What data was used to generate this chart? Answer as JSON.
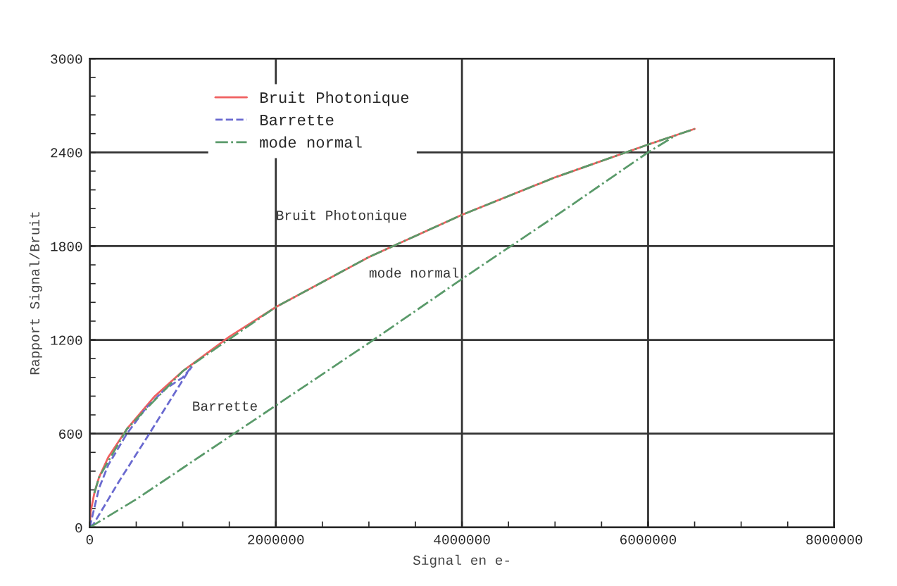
{
  "chart_data": {
    "type": "line",
    "xlabel": "Signal en e-",
    "ylabel": "Rapport Signal/Bruit",
    "xlim": [
      0,
      8000000
    ],
    "xticks": [
      0,
      2000000,
      4000000,
      6000000,
      8000000
    ],
    "ylim": [
      0,
      3000
    ],
    "yticks": [
      0,
      600,
      1200,
      1800,
      2400,
      3000
    ],
    "grid": true,
    "legend": "top left",
    "series": [
      {
        "name": "Bruit Photonique",
        "color": "#f06060",
        "line_style": "solid",
        "x": [
          0,
          10000,
          50000,
          100000,
          200000,
          400000,
          700000,
          1000000,
          1500000,
          2000000,
          3000000,
          4000000,
          5000000,
          6000000,
          6500000
        ],
        "values": [
          0,
          100,
          220,
          320,
          450,
          630,
          840,
          1000,
          1220,
          1410,
          1730,
          2000,
          2240,
          2450,
          2550
        ]
      },
      {
        "name": "Barrette",
        "color": "#6a6ad0",
        "line_style": "dashed",
        "x": [
          0,
          100000,
          200000,
          400000,
          600000,
          800000,
          1000000,
          1100000
        ],
        "values": [
          0,
          250,
          400,
          600,
          760,
          880,
          960,
          1030
        ]
      },
      {
        "color": "#6a6ad0",
        "line_style": "dashed",
        "x": [
          0,
          40000,
          300000,
          630000,
          1050000,
          1100000
        ],
        "values": [
          0,
          20,
          280,
          590,
          990,
          1030
        ]
      },
      {
        "name": "mode normal",
        "color": "#5a9a6a",
        "line_style": "dashdot",
        "x": [
          0,
          500000,
          1000000,
          2000000,
          3000000,
          4000000,
          5000000,
          6000000,
          6300000
        ],
        "values": [
          0,
          180,
          380,
          780,
          1180,
          1590,
          1990,
          2400,
          2510
        ]
      },
      {
        "color": "#5a9a6a",
        "line_style": "dashdot",
        "x": [
          50000,
          100000,
          400000,
          1000000,
          2000000,
          3000000,
          4000000,
          5000000,
          6000000,
          6500000
        ],
        "values": [
          220,
          320,
          630,
          1000,
          1410,
          1730,
          2000,
          2240,
          2450,
          2550
        ]
      }
    ],
    "annotations": [
      "Bruit Photonique",
      "mode normal",
      "Barrette"
    ]
  }
}
